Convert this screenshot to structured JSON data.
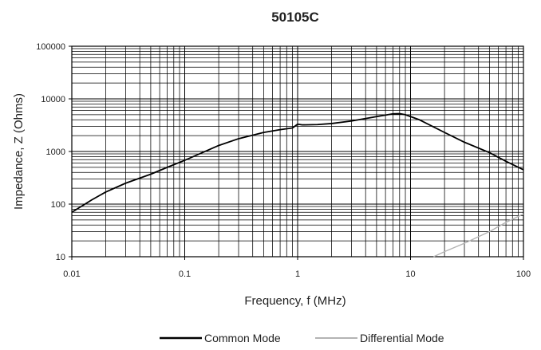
{
  "chart_data": {
    "type": "line",
    "title": "50105C",
    "xlabel": "Frequency, f (MHz)",
    "ylabel": "Impedance, Z (Ohms)",
    "x_scale": "log",
    "y_scale": "log",
    "xlim": [
      0.01,
      100
    ],
    "ylim": [
      10,
      100000
    ],
    "grid": true,
    "legend_position": "bottom",
    "x_ticks": [
      "0.01",
      "0.1",
      "1",
      "10",
      "100"
    ],
    "y_ticks": [
      "100000",
      "10000",
      "1000",
      "100",
      "10"
    ],
    "series": [
      {
        "name": "Common Mode",
        "color": "#000000",
        "points": [
          [
            0.01,
            70
          ],
          [
            0.015,
            120
          ],
          [
            0.02,
            170
          ],
          [
            0.03,
            250
          ],
          [
            0.05,
            370
          ],
          [
            0.07,
            500
          ],
          [
            0.1,
            680
          ],
          [
            0.2,
            1300
          ],
          [
            0.3,
            1750
          ],
          [
            0.5,
            2300
          ],
          [
            0.7,
            2600
          ],
          [
            0.9,
            2800
          ],
          [
            1.0,
            3300
          ],
          [
            1.1,
            3200
          ],
          [
            1.5,
            3250
          ],
          [
            2,
            3400
          ],
          [
            3,
            3800
          ],
          [
            5,
            4600
          ],
          [
            7,
            5200
          ],
          [
            8,
            5250
          ],
          [
            9,
            5000
          ],
          [
            12,
            4000
          ],
          [
            20,
            2300
          ],
          [
            30,
            1500
          ],
          [
            50,
            950
          ],
          [
            70,
            650
          ],
          [
            100,
            450
          ]
        ]
      },
      {
        "name": "Differential Mode",
        "color": "#b3b3b3",
        "points": [
          [
            16,
            10
          ],
          [
            20,
            12.5
          ],
          [
            30,
            18
          ],
          [
            50,
            30
          ],
          [
            70,
            45
          ],
          [
            100,
            65
          ]
        ]
      }
    ]
  }
}
